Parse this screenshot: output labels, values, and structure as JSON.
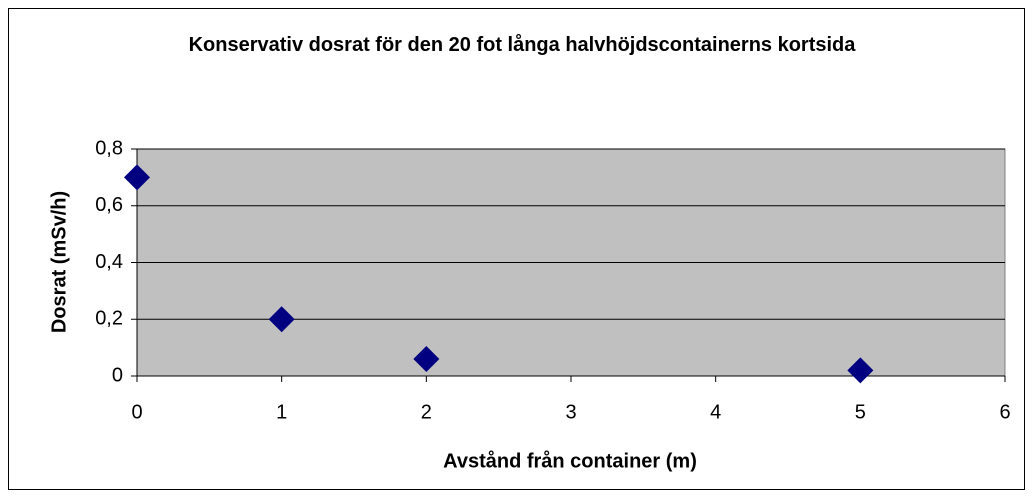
{
  "chart_data": {
    "type": "scatter",
    "title": "Konservativ dosrat för den 20 fot långa halvhöjdscontainerns kortsida",
    "x_label": "Avstånd från container (m)",
    "y_label": "Dosrat (mSv/h)",
    "x": [
      0,
      1,
      2,
      5
    ],
    "values": [
      0.7,
      0.2,
      0.06,
      0.02
    ],
    "color": "#000080",
    "xlim": [
      0,
      6
    ],
    "xticks": [
      0,
      1,
      2,
      3,
      4,
      5,
      6
    ],
    "ylim": [
      0,
      0.8
    ],
    "yticks": [
      0,
      {
        "value": 0.2,
        "label": "0,2"
      },
      {
        "value": 0.4,
        "label": "0,4"
      },
      {
        "value": 0.6,
        "label": "0,6"
      },
      {
        "value": 0.8,
        "label": "0,8"
      }
    ],
    "grid": true
  }
}
